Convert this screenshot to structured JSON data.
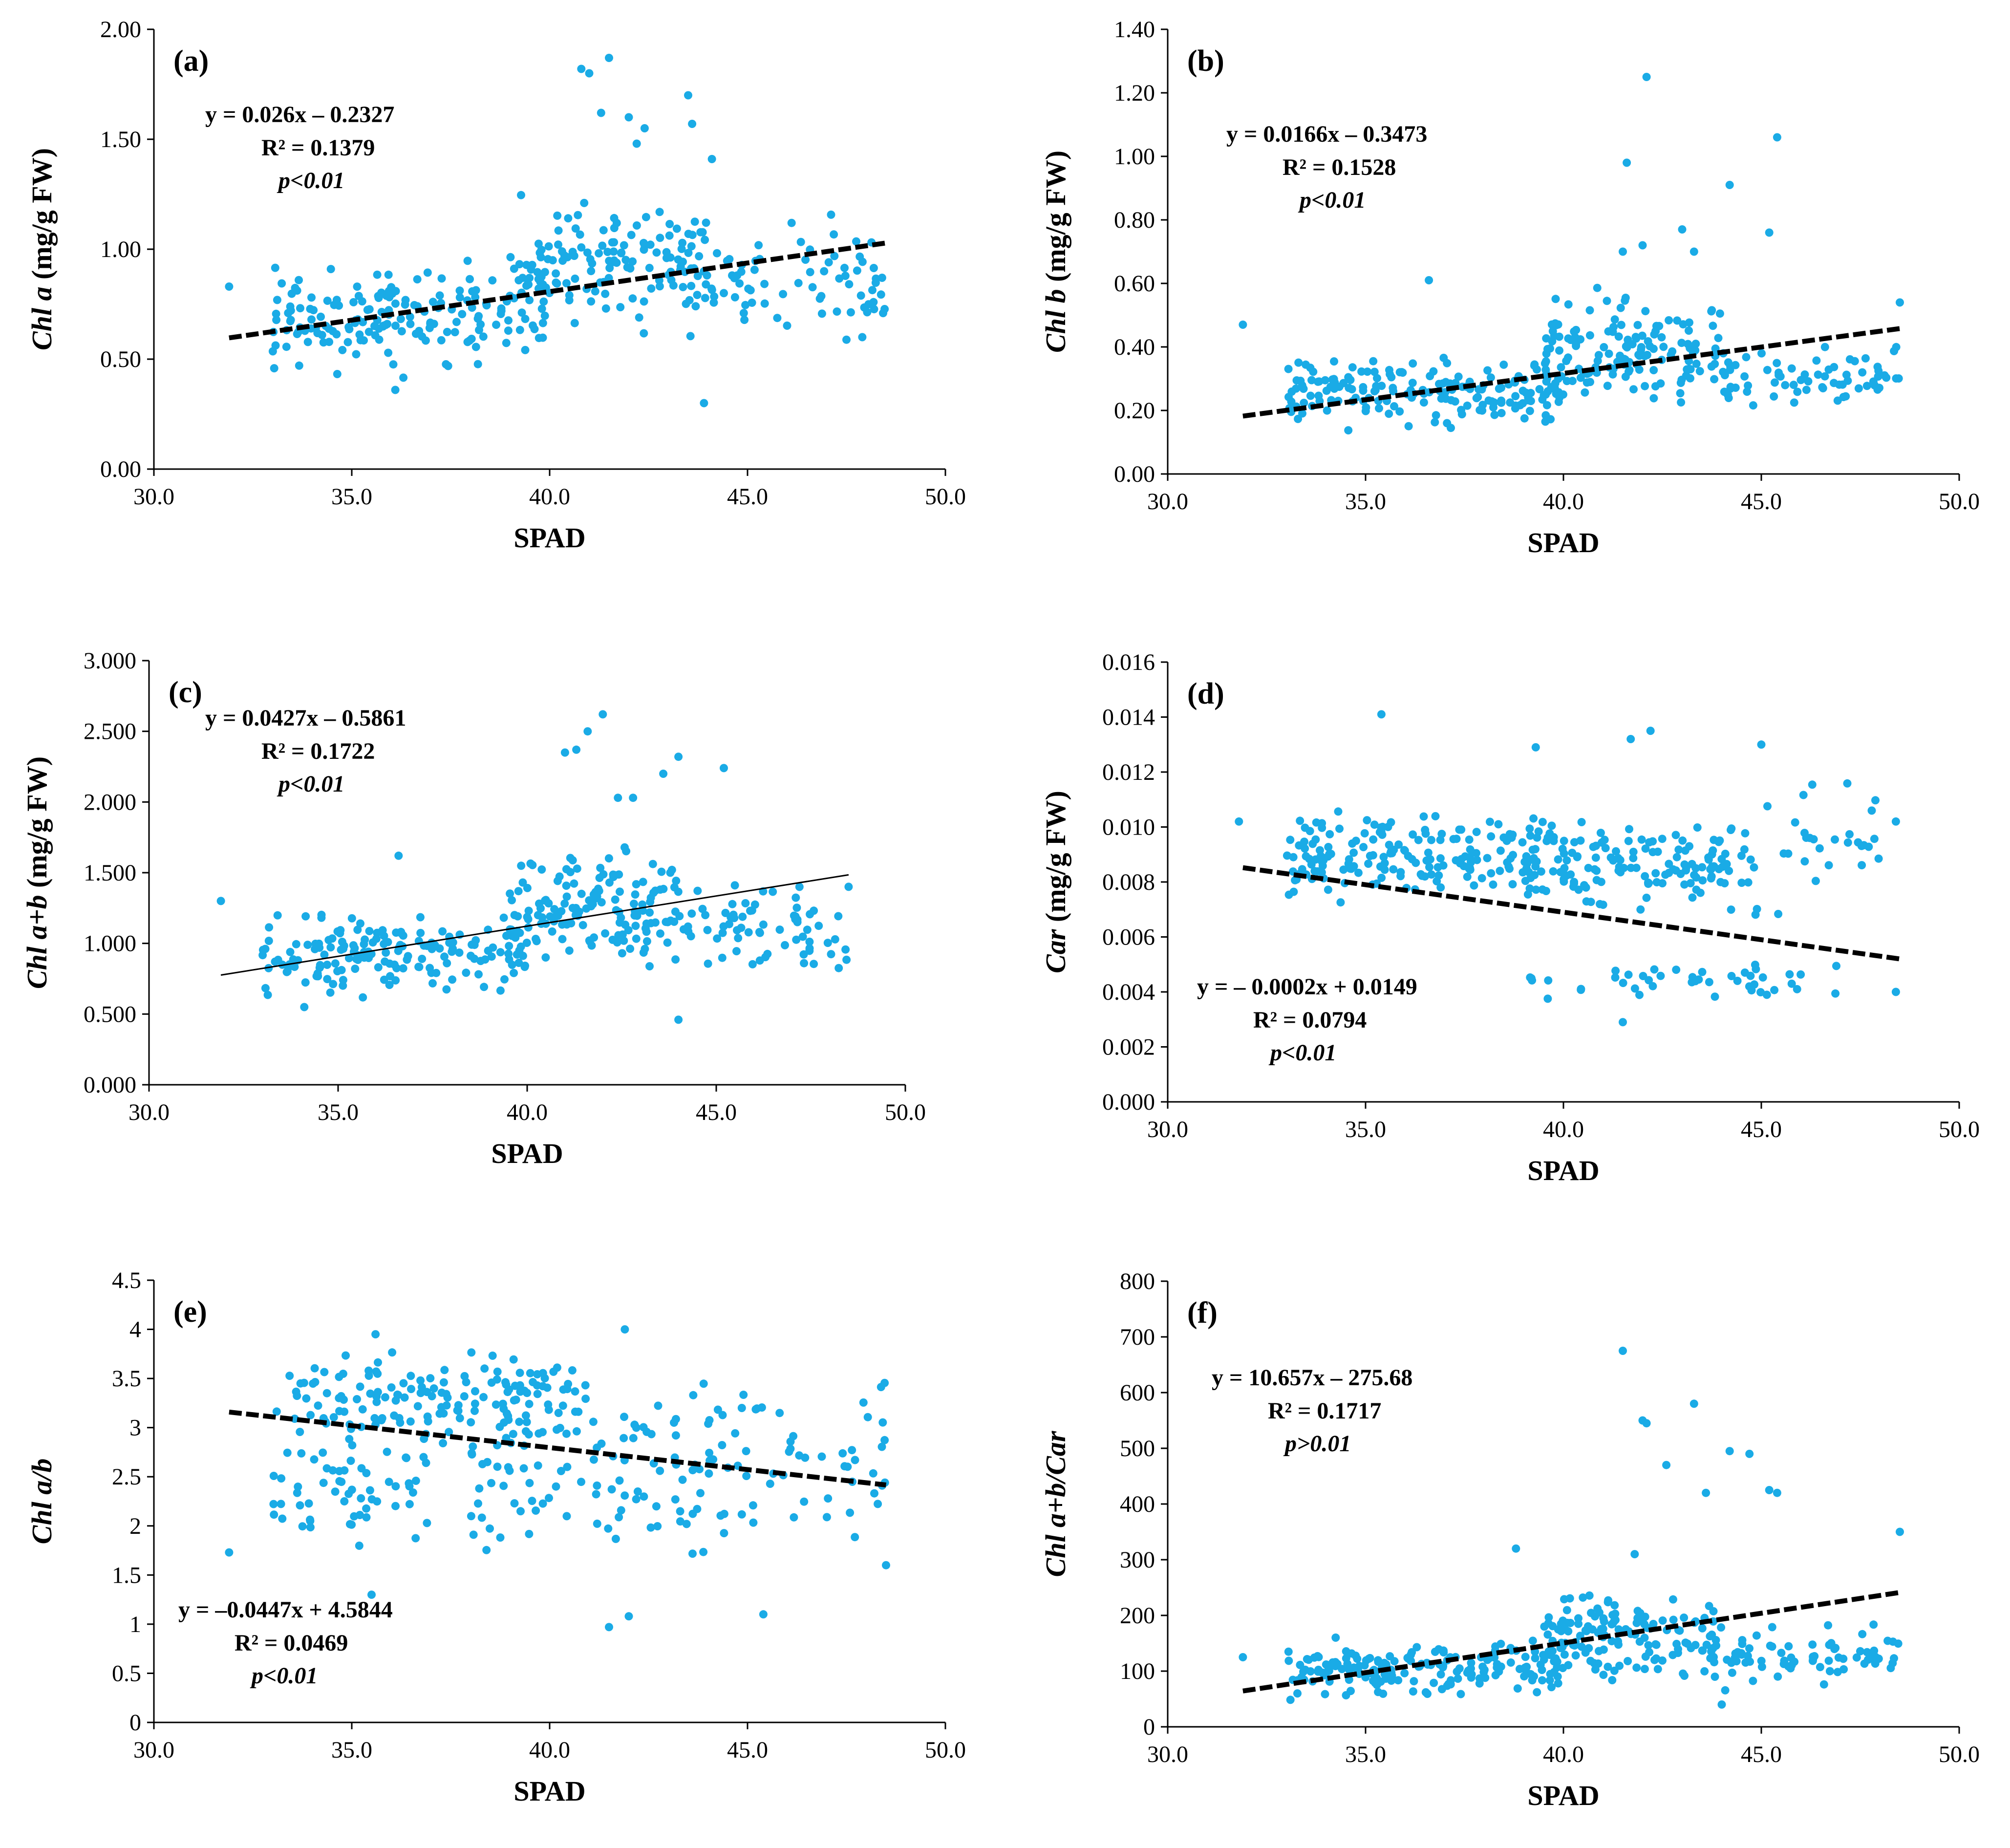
{
  "chart_data": [
    {
      "id": "a",
      "type": "scatter",
      "panel_label": "(a)",
      "xlabel": "SPAD",
      "ylabel_parts": [
        {
          "t": "Chl a",
          "i": true
        },
        {
          "t": " (mg/g FW)",
          "i": false
        }
      ],
      "xlim": [
        30,
        50
      ],
      "ylim": [
        0,
        2
      ],
      "xticks": [
        30,
        35,
        40,
        45,
        50
      ],
      "xtick_labels": [
        "30.0",
        "35.0",
        "40.0",
        "45.0",
        "50.0"
      ],
      "yticks": [
        0,
        0.5,
        1,
        1.5,
        2
      ],
      "ytick_labels": [
        "0.00",
        "0.50",
        "1.00",
        "1.50",
        "2.00"
      ],
      "equation": "y = 0.026x – 0.2327",
      "r2": "R² = 0.1379",
      "pvalue": "p<0.01",
      "trend": {
        "slope": 0.026,
        "intercept": -0.2327,
        "x_range": [
          31.9,
          48.5
        ],
        "dashed": true
      },
      "marker_color": "#1aabe6",
      "seed": 11,
      "n_points": 420,
      "clusters": [
        {
          "n": 170,
          "x": [
            33,
            40
          ],
          "y": [
            0.4,
            1.0
          ]
        },
        {
          "n": 150,
          "x": [
            39,
            44
          ],
          "y": [
            0.55,
            1.3
          ]
        },
        {
          "n": 70,
          "x": [
            44,
            48.5
          ],
          "y": [
            0.5,
            1.2
          ]
        }
      ],
      "outliers": [
        [
          40.8,
          1.82
        ],
        [
          41.0,
          1.8
        ],
        [
          41.5,
          1.87
        ],
        [
          43.5,
          1.7
        ],
        [
          42.0,
          1.6
        ],
        [
          42.4,
          1.55
        ],
        [
          43.6,
          1.57
        ],
        [
          44.1,
          1.41
        ],
        [
          43.9,
          0.3
        ],
        [
          41.3,
          1.62
        ],
        [
          42.2,
          1.48
        ],
        [
          36.1,
          0.36
        ],
        [
          31.9,
          0.83
        ],
        [
          48.4,
          0.87
        ],
        [
          47.9,
          0.6
        ]
      ]
    },
    {
      "id": "b",
      "type": "scatter",
      "panel_label": "(b)",
      "xlabel": "SPAD",
      "ylabel_parts": [
        {
          "t": "Chl b",
          "i": true
        },
        {
          "t": " (mg/g FW)",
          "i": false
        }
      ],
      "xlim": [
        30,
        50
      ],
      "ylim": [
        0,
        1.4
      ],
      "xticks": [
        30,
        35,
        40,
        45,
        50
      ],
      "xtick_labels": [
        "30.0",
        "35.0",
        "40.0",
        "45.0",
        "50.0"
      ],
      "yticks": [
        0,
        0.2,
        0.4,
        0.6,
        0.8,
        1,
        1.2,
        1.4
      ],
      "ytick_labels": [
        "0.00",
        "0.20",
        "0.40",
        "0.60",
        "0.80",
        "1.00",
        "1.20",
        "1.40"
      ],
      "equation": "y = 0.0166x – 0.3473",
      "r2": "R² = 0.1528",
      "pvalue": "p<0.01",
      "trend": {
        "slope": 0.0166,
        "intercept": -0.3473,
        "x_range": [
          31.9,
          48.5
        ],
        "dashed": true
      },
      "marker_color": "#1aabe6",
      "seed": 23,
      "n_points": 420,
      "clusters": [
        {
          "n": 180,
          "x": [
            33,
            40
          ],
          "y": [
            0.12,
            0.4
          ]
        },
        {
          "n": 150,
          "x": [
            39.5,
            44
          ],
          "y": [
            0.16,
            0.6
          ]
        },
        {
          "n": 70,
          "x": [
            44,
            48.5
          ],
          "y": [
            0.18,
            0.45
          ]
        }
      ],
      "outliers": [
        [
          42.1,
          1.25
        ],
        [
          41.6,
          0.98
        ],
        [
          45.4,
          1.06
        ],
        [
          44.2,
          0.91
        ],
        [
          45.2,
          0.76
        ],
        [
          43.0,
          0.77
        ],
        [
          36.6,
          0.61
        ],
        [
          31.9,
          0.47
        ],
        [
          48.5,
          0.54
        ],
        [
          42.0,
          0.72
        ],
        [
          41.5,
          0.7
        ],
        [
          43.3,
          0.7
        ]
      ]
    },
    {
      "id": "c",
      "type": "scatter",
      "panel_label": "(c)",
      "xlabel": "SPAD",
      "ylabel_parts": [
        {
          "t": "Chl a+b",
          "i": true
        },
        {
          "t": " (mg/g FW)",
          "i": false
        }
      ],
      "xlim": [
        30,
        50
      ],
      "ylim": [
        0,
        3
      ],
      "xticks": [
        30,
        35,
        40,
        45,
        50
      ],
      "xtick_labels": [
        "30.0",
        "35.0",
        "40.0",
        "45.0",
        "50.0"
      ],
      "yticks": [
        0,
        0.5,
        1,
        1.5,
        2,
        2.5,
        3
      ],
      "ytick_labels": [
        "0.000",
        "0.500",
        "1.000",
        "1.500",
        "2.000",
        "2.500",
        "3.000"
      ],
      "equation": "y = 0.0427x – 0.5861",
      "r2": "R² = 0.1722",
      "pvalue": "p<0.01",
      "trend": {
        "slope": 0.0427,
        "intercept": -0.5861,
        "x_range": [
          31.9,
          48.5
        ],
        "dashed": false
      },
      "marker_color": "#1aabe6",
      "seed": 37,
      "n_points": 420,
      "clusters": [
        {
          "n": 170,
          "x": [
            33,
            40
          ],
          "y": [
            0.5,
            1.3
          ]
        },
        {
          "n": 150,
          "x": [
            39.5,
            44
          ],
          "y": [
            0.7,
            1.8
          ]
        },
        {
          "n": 70,
          "x": [
            44,
            48.5
          ],
          "y": [
            0.7,
            1.5
          ]
        }
      ],
      "outliers": [
        [
          42.0,
          2.62
        ],
        [
          41.6,
          2.5
        ],
        [
          41.0,
          2.35
        ],
        [
          41.3,
          2.37
        ],
        [
          44.0,
          2.32
        ],
        [
          43.6,
          2.2
        ],
        [
          45.2,
          2.24
        ],
        [
          42.4,
          2.03
        ],
        [
          42.8,
          2.03
        ],
        [
          36.6,
          1.62
        ],
        [
          31.9,
          1.3
        ],
        [
          44.0,
          0.46
        ],
        [
          48.5,
          1.4
        ]
      ]
    },
    {
      "id": "d",
      "type": "scatter",
      "panel_label": "(d)",
      "xlabel": "SPAD",
      "ylabel_parts": [
        {
          "t": "Car",
          "i": true
        },
        {
          "t": " (mg/g FW)",
          "i": false
        }
      ],
      "xlim": [
        30,
        50
      ],
      "ylim": [
        0,
        0.016
      ],
      "xticks": [
        30,
        35,
        40,
        45,
        50
      ],
      "xtick_labels": [
        "30.0",
        "35.0",
        "40.0",
        "45.0",
        "50.0"
      ],
      "yticks": [
        0,
        0.002,
        0.004,
        0.006,
        0.008,
        0.01,
        0.012,
        0.014,
        0.016
      ],
      "ytick_labels": [
        "0.000",
        "0.002",
        "0.004",
        "0.006",
        "0.008",
        "0.010",
        "0.012",
        "0.014",
        "0.016"
      ],
      "equation": "y = – 0.0002x + 0.0149",
      "r2": "R² = 0.0794",
      "pvalue": "p<0.01",
      "trend": {
        "slope": -0.0002,
        "intercept": 0.0149,
        "x_range": [
          31.9,
          48.5
        ],
        "dashed": true
      },
      "marker_color": "#1aabe6",
      "seed": 53,
      "n_points": 420,
      "clusters": [
        {
          "n": 200,
          "x": [
            33,
            40
          ],
          "y": [
            0.007,
            0.011
          ]
        },
        {
          "n": 110,
          "x": [
            40,
            44
          ],
          "y": [
            0.0065,
            0.0105
          ]
        },
        {
          "n": 45,
          "x": [
            44,
            48
          ],
          "y": [
            0.006,
            0.0125
          ]
        },
        {
          "n": 45,
          "x": [
            39,
            47
          ],
          "y": [
            0.0035,
            0.0052
          ]
        }
      ],
      "outliers": [
        [
          35.4,
          0.0141
        ],
        [
          42.2,
          0.0135
        ],
        [
          41.7,
          0.0132
        ],
        [
          45.0,
          0.013
        ],
        [
          39.3,
          0.0129
        ],
        [
          41.5,
          0.0029
        ],
        [
          48.4,
          0.004
        ],
        [
          31.8,
          0.0102
        ],
        [
          48.4,
          0.0102
        ]
      ]
    },
    {
      "id": "e",
      "type": "scatter",
      "panel_label": "(e)",
      "xlabel": "SPAD",
      "ylabel_parts": [
        {
          "t": "Chl a/b",
          "i": true
        }
      ],
      "xlim": [
        30,
        50
      ],
      "ylim": [
        0,
        4.5
      ],
      "xticks": [
        30,
        35,
        40,
        45,
        50
      ],
      "xtick_labels": [
        "30.0",
        "35.0",
        "40.0",
        "45.0",
        "50.0"
      ],
      "yticks": [
        0,
        0.5,
        1,
        1.5,
        2,
        2.5,
        3,
        3.5,
        4,
        4.5
      ],
      "ytick_labels": [
        "0",
        "0.5",
        "1",
        "1.5",
        "2",
        "2.5",
        "3",
        "3.5",
        "4",
        "4.5"
      ],
      "equation": "y = –0.0447x + 4.5844",
      "r2": "R² = 0.0469",
      "pvalue": "p<0.01",
      "trend": {
        "slope": -0.0447,
        "intercept": 4.5844,
        "x_range": [
          31.9,
          48.5
        ],
        "dashed": true
      },
      "marker_color": "#1aabe6",
      "seed": 71,
      "n_points": 420,
      "clusters": [
        {
          "n": 150,
          "x": [
            33,
            41
          ],
          "y": [
            2.7,
            3.9
          ]
        },
        {
          "n": 60,
          "x": [
            33,
            37
          ],
          "y": [
            1.6,
            3.2
          ]
        },
        {
          "n": 100,
          "x": [
            38,
            44
          ],
          "y": [
            1.4,
            3.9
          ]
        },
        {
          "n": 60,
          "x": [
            44,
            48.5
          ],
          "y": [
            1.4,
            3.9
          ]
        }
      ],
      "outliers": [
        [
          41.5,
          0.97
        ],
        [
          42.0,
          1.08
        ],
        [
          45.4,
          1.1
        ],
        [
          35.5,
          1.3
        ],
        [
          31.9,
          1.73
        ],
        [
          48.5,
          1.6
        ],
        [
          35.6,
          3.95
        ],
        [
          41.9,
          4.0
        ]
      ]
    },
    {
      "id": "f",
      "type": "scatter",
      "panel_label": "(f)",
      "xlabel": "SPAD",
      "ylabel_parts": [
        {
          "t": "Chl a+b/Car",
          "i": true
        }
      ],
      "xlim": [
        30,
        50
      ],
      "ylim": [
        0,
        800
      ],
      "xticks": [
        30,
        35,
        40,
        45,
        50
      ],
      "xtick_labels": [
        "30.0",
        "35.0",
        "40.0",
        "45.0",
        "50.0"
      ],
      "yticks": [
        0,
        100,
        200,
        300,
        400,
        500,
        600,
        700,
        800
      ],
      "ytick_labels": [
        "0",
        "100",
        "200",
        "300",
        "400",
        "500",
        "600",
        "700",
        "800"
      ],
      "equation": "y = 10.657x – 275.68",
      "r2": "R² = 0.1717",
      "pvalue": "p>0.01",
      "trend": {
        "slope": 10.657,
        "intercept": -275.68,
        "x_range": [
          31.9,
          48.5
        ],
        "dashed": true
      },
      "marker_color": "#1aabe6",
      "seed": 97,
      "n_points": 420,
      "clusters": [
        {
          "n": 180,
          "x": [
            33,
            40
          ],
          "y": [
            40,
            170
          ]
        },
        {
          "n": 150,
          "x": [
            39.5,
            44
          ],
          "y": [
            60,
            260
          ]
        },
        {
          "n": 70,
          "x": [
            44,
            48.5
          ],
          "y": [
            60,
            200
          ]
        }
      ],
      "outliers": [
        [
          41.5,
          675
        ],
        [
          43.3,
          580
        ],
        [
          42.1,
          545
        ],
        [
          42.0,
          550
        ],
        [
          44.2,
          495
        ],
        [
          44.7,
          490
        ],
        [
          42.6,
          470
        ],
        [
          45.2,
          425
        ],
        [
          45.4,
          420
        ],
        [
          43.6,
          420
        ],
        [
          38.8,
          320
        ],
        [
          41.8,
          310
        ],
        [
          48.5,
          350
        ],
        [
          31.9,
          125
        ],
        [
          44.0,
          40
        ]
      ]
    }
  ]
}
